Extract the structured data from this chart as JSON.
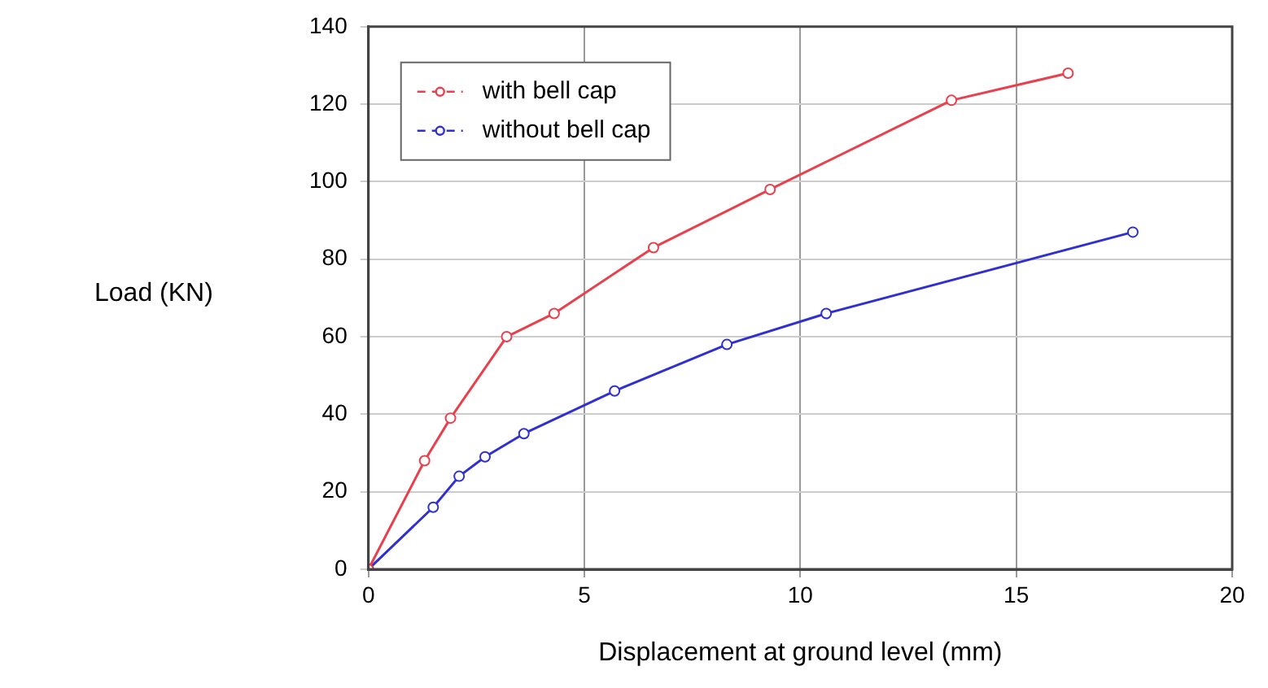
{
  "chart_data": {
    "type": "line",
    "xlabel": "Displacement at ground level (mm)",
    "ylabel": "Load (KN)",
    "xlim": [
      0,
      20
    ],
    "xticks": [
      0,
      5,
      10,
      15,
      20
    ],
    "ylim": [
      0,
      140
    ],
    "yticks": [
      0,
      20,
      40,
      60,
      80,
      100,
      120,
      140
    ],
    "grid": true,
    "legend": "top left",
    "marker": "circle",
    "line_style": "solid",
    "series": [
      {
        "name": "with bell cap",
        "color": "#e8404c",
        "x": [
          0,
          1.3,
          1.9,
          3.2,
          4.3,
          6.6,
          9.3,
          13.5,
          16.2
        ],
        "values": [
          0,
          28,
          39,
          60,
          66,
          83,
          98,
          121,
          128
        ]
      },
      {
        "name": "without bell cap",
        "color": "#3030d0",
        "x": [
          0,
          1.5,
          2.1,
          2.7,
          3.6,
          5.7,
          8.3,
          10.6,
          17.7
        ],
        "values": [
          0,
          16,
          24,
          29,
          35,
          46,
          58,
          66,
          87
        ]
      }
    ]
  }
}
